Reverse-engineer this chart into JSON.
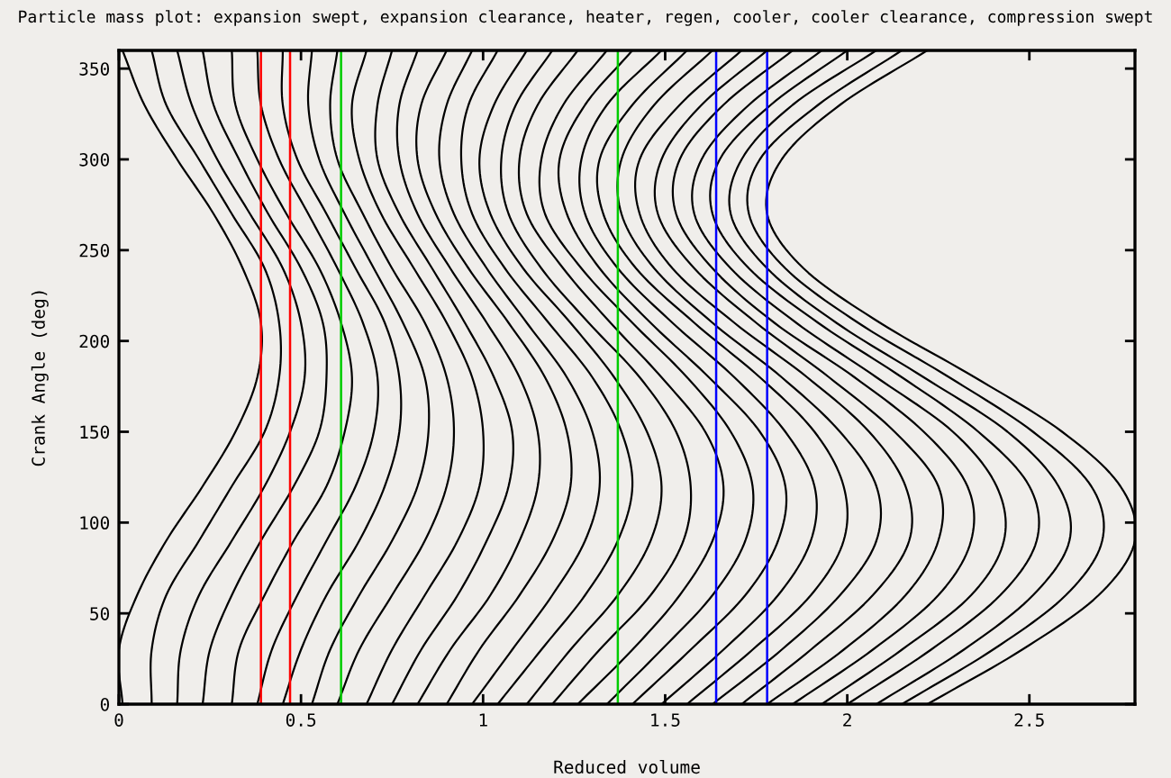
{
  "chart_data": {
    "type": "line",
    "title": "Particle mass plot: expansion swept, expansion clearance, heater, regen, cooler, cooler clearance, compression swept",
    "xlabel": "Reduced volume",
    "ylabel": "Crank Angle (deg)",
    "xlim": [
      0,
      2.79
    ],
    "ylim": [
      0,
      360
    ],
    "xticks": [
      0,
      0.5,
      1,
      1.5,
      2,
      2.5
    ],
    "yticks": [
      0,
      50,
      100,
      150,
      200,
      250,
      300,
      350
    ],
    "ref_lines": [
      {
        "axis": "x",
        "value": 0.39,
        "color": "#ff0000"
      },
      {
        "axis": "x",
        "value": 0.47,
        "color": "#ff0000"
      },
      {
        "axis": "x",
        "value": 0.61,
        "color": "#00cc00"
      },
      {
        "axis": "x",
        "value": 1.37,
        "color": "#00cc00"
      },
      {
        "axis": "x",
        "value": 1.64,
        "color": "#0000ff"
      },
      {
        "axis": "x",
        "value": 1.78,
        "color": "#0000ff"
      }
    ],
    "series": [
      {
        "color": "#000000",
        "x": [
          0.01,
          0,
          0.05,
          0.13,
          0.23,
          0.32,
          0.38,
          0.39,
          0.34,
          0.26,
          0.16,
          0.07,
          0.01
        ],
        "values": [
          0,
          30,
          60,
          90,
          120,
          150,
          180,
          210,
          240,
          270,
          300,
          330,
          360
        ]
      },
      {
        "color": "#000000",
        "x": [
          0.09,
          0.09,
          0.13,
          0.22,
          0.31,
          0.4,
          0.44,
          0.44,
          0.4,
          0.31,
          0.22,
          0.13,
          0.09
        ],
        "values": [
          0,
          30,
          60,
          90,
          120,
          150,
          180,
          210,
          240,
          270,
          300,
          330,
          360
        ]
      },
      {
        "color": "#000000",
        "x": [
          0.16,
          0.17,
          0.22,
          0.31,
          0.4,
          0.47,
          0.51,
          0.5,
          0.45,
          0.36,
          0.27,
          0.2,
          0.16
        ],
        "values": [
          0,
          30,
          60,
          90,
          120,
          150,
          180,
          210,
          240,
          270,
          300,
          330,
          360
        ]
      },
      {
        "color": "#000000",
        "x": [
          0.23,
          0.25,
          0.31,
          0.39,
          0.48,
          0.55,
          0.57,
          0.56,
          0.5,
          0.41,
          0.33,
          0.26,
          0.23
        ],
        "values": [
          0,
          30,
          60,
          90,
          120,
          150,
          180,
          210,
          240,
          270,
          300,
          330,
          360
        ]
      },
      {
        "color": "#000000",
        "x": [
          0.31,
          0.33,
          0.4,
          0.48,
          0.57,
          0.62,
          0.64,
          0.61,
          0.55,
          0.46,
          0.38,
          0.32,
          0.31
        ],
        "values": [
          0,
          30,
          60,
          90,
          120,
          150,
          180,
          210,
          240,
          270,
          300,
          330,
          360
        ]
      },
      {
        "color": "#000000",
        "x": [
          0.38,
          0.42,
          0.49,
          0.57,
          0.65,
          0.7,
          0.71,
          0.67,
          0.6,
          0.52,
          0.44,
          0.39,
          0.38
        ],
        "values": [
          0,
          30,
          60,
          90,
          120,
          150,
          180,
          210,
          240,
          270,
          300,
          330,
          360
        ]
      },
      {
        "color": "#000000",
        "x": [
          0.45,
          0.5,
          0.57,
          0.66,
          0.73,
          0.77,
          0.77,
          0.73,
          0.65,
          0.57,
          0.49,
          0.45,
          0.45
        ],
        "values": [
          0,
          30,
          60,
          90,
          120,
          150,
          180,
          210,
          240,
          270,
          300,
          330,
          360
        ]
      },
      {
        "color": "#000000",
        "x": [
          0.53,
          0.58,
          0.66,
          0.75,
          0.82,
          0.85,
          0.84,
          0.78,
          0.7,
          0.62,
          0.55,
          0.52,
          0.53
        ],
        "values": [
          0,
          30,
          60,
          90,
          120,
          150,
          180,
          210,
          240,
          270,
          300,
          330,
          360
        ]
      },
      {
        "color": "#000000",
        "x": [
          0.6,
          0.66,
          0.75,
          0.84,
          0.9,
          0.92,
          0.9,
          0.84,
          0.75,
          0.67,
          0.6,
          0.58,
          0.6
        ],
        "values": [
          0,
          30,
          60,
          90,
          120,
          150,
          180,
          210,
          240,
          270,
          300,
          330,
          360
        ]
      },
      {
        "color": "#000000",
        "x": [
          0.68,
          0.75,
          0.84,
          0.93,
          0.99,
          1.0,
          0.97,
          0.9,
          0.81,
          0.72,
          0.66,
          0.64,
          0.68
        ],
        "values": [
          0,
          30,
          60,
          90,
          120,
          150,
          180,
          210,
          240,
          270,
          300,
          330,
          360
        ]
      },
      {
        "color": "#000000",
        "x": [
          0.75,
          0.83,
          0.93,
          1.01,
          1.07,
          1.08,
          1.03,
          0.95,
          0.86,
          0.77,
          0.71,
          0.71,
          0.75
        ],
        "values": [
          0,
          30,
          60,
          90,
          120,
          150,
          180,
          210,
          240,
          270,
          300,
          330,
          360
        ]
      },
      {
        "color": "#000000",
        "x": [
          0.82,
          0.91,
          1.02,
          1.1,
          1.15,
          1.15,
          1.1,
          1.01,
          0.91,
          0.82,
          0.77,
          0.77,
          0.82
        ],
        "values": [
          0,
          30,
          60,
          90,
          120,
          150,
          180,
          210,
          240,
          270,
          300,
          330,
          360
        ]
      },
      {
        "color": "#000000",
        "x": [
          0.9,
          0.99,
          1.1,
          1.19,
          1.24,
          1.23,
          1.17,
          1.07,
          0.96,
          0.87,
          0.82,
          0.83,
          0.9
        ],
        "values": [
          0,
          30,
          60,
          90,
          120,
          150,
          180,
          210,
          240,
          270,
          300,
          330,
          360
        ]
      },
      {
        "color": "#000000",
        "x": [
          0.97,
          1.08,
          1.19,
          1.28,
          1.32,
          1.3,
          1.23,
          1.12,
          1.01,
          0.92,
          0.88,
          0.9,
          0.97
        ],
        "values": [
          0,
          30,
          60,
          90,
          120,
          150,
          180,
          210,
          240,
          270,
          300,
          330,
          360
        ]
      },
      {
        "color": "#000000",
        "x": [
          1.04,
          1.16,
          1.28,
          1.37,
          1.41,
          1.38,
          1.3,
          1.18,
          1.06,
          0.97,
          0.94,
          0.96,
          1.04
        ],
        "values": [
          0,
          30,
          60,
          90,
          120,
          150,
          180,
          210,
          240,
          270,
          300,
          330,
          360
        ]
      },
      {
        "color": "#000000",
        "x": [
          1.12,
          1.24,
          1.37,
          1.46,
          1.49,
          1.45,
          1.36,
          1.24,
          1.11,
          1.02,
          0.99,
          1.03,
          1.12
        ],
        "values": [
          0,
          30,
          60,
          90,
          120,
          150,
          180,
          210,
          240,
          270,
          300,
          330,
          360
        ]
      },
      {
        "color": "#000000",
        "x": [
          1.19,
          1.32,
          1.46,
          1.55,
          1.57,
          1.53,
          1.43,
          1.29,
          1.16,
          1.07,
          1.05,
          1.09,
          1.19
        ],
        "values": [
          0,
          30,
          60,
          90,
          120,
          150,
          180,
          210,
          240,
          270,
          300,
          330,
          360
        ]
      },
      {
        "color": "#000000",
        "x": [
          1.26,
          1.41,
          1.54,
          1.63,
          1.66,
          1.61,
          1.49,
          1.35,
          1.22,
          1.12,
          1.1,
          1.15,
          1.26
        ],
        "values": [
          0,
          30,
          60,
          90,
          120,
          150,
          180,
          210,
          240,
          270,
          300,
          330,
          360
        ]
      },
      {
        "color": "#000000",
        "x": [
          1.34,
          1.49,
          1.63,
          1.72,
          1.74,
          1.68,
          1.56,
          1.41,
          1.27,
          1.17,
          1.16,
          1.22,
          1.34
        ],
        "values": [
          0,
          30,
          60,
          90,
          120,
          150,
          180,
          210,
          240,
          270,
          300,
          330,
          360
        ]
      },
      {
        "color": "#000000",
        "x": [
          1.41,
          1.57,
          1.72,
          1.81,
          1.83,
          1.76,
          1.62,
          1.46,
          1.32,
          1.23,
          1.21,
          1.28,
          1.41
        ],
        "values": [
          0,
          30,
          60,
          90,
          120,
          150,
          180,
          210,
          240,
          270,
          300,
          330,
          360
        ]
      },
      {
        "color": "#000000",
        "x": [
          1.49,
          1.66,
          1.81,
          1.9,
          1.91,
          1.83,
          1.69,
          1.52,
          1.37,
          1.28,
          1.27,
          1.34,
          1.49
        ],
        "values": [
          0,
          30,
          60,
          90,
          120,
          150,
          180,
          210,
          240,
          270,
          300,
          330,
          360
        ]
      },
      {
        "color": "#000000",
        "x": [
          1.56,
          1.74,
          1.9,
          1.99,
          1.99,
          1.91,
          1.76,
          1.58,
          1.42,
          1.33,
          1.32,
          1.41,
          1.56
        ],
        "values": [
          0,
          30,
          60,
          90,
          120,
          150,
          180,
          210,
          240,
          270,
          300,
          330,
          360
        ]
      },
      {
        "color": "#000000",
        "x": [
          1.63,
          1.82,
          1.98,
          2.08,
          2.08,
          1.98,
          1.82,
          1.63,
          1.47,
          1.38,
          1.38,
          1.47,
          1.63
        ],
        "values": [
          0,
          30,
          60,
          90,
          120,
          150,
          180,
          210,
          240,
          270,
          300,
          330,
          360
        ]
      },
      {
        "color": "#000000",
        "x": [
          1.71,
          1.9,
          2.07,
          2.17,
          2.16,
          2.06,
          1.89,
          1.69,
          1.52,
          1.43,
          1.43,
          1.54,
          1.71
        ],
        "values": [
          0,
          30,
          60,
          90,
          120,
          150,
          180,
          210,
          240,
          270,
          300,
          330,
          360
        ]
      },
      {
        "color": "#000000",
        "x": [
          1.78,
          1.99,
          2.16,
          2.25,
          2.25,
          2.13,
          1.95,
          1.75,
          1.58,
          1.48,
          1.49,
          1.6,
          1.78
        ],
        "values": [
          0,
          30,
          60,
          90,
          120,
          150,
          180,
          210,
          240,
          270,
          300,
          330,
          360
        ]
      },
      {
        "color": "#000000",
        "x": [
          1.85,
          2.07,
          2.25,
          2.34,
          2.33,
          2.21,
          2.02,
          1.8,
          1.63,
          1.53,
          1.54,
          1.66,
          1.85
        ],
        "values": [
          0,
          30,
          60,
          90,
          120,
          150,
          180,
          210,
          240,
          270,
          300,
          330,
          360
        ]
      },
      {
        "color": "#000000",
        "x": [
          1.93,
          2.15,
          2.34,
          2.43,
          2.41,
          2.29,
          2.08,
          1.86,
          1.68,
          1.58,
          1.6,
          1.73,
          1.93
        ],
        "values": [
          0,
          30,
          60,
          90,
          120,
          150,
          180,
          210,
          240,
          270,
          300,
          330,
          360
        ]
      },
      {
        "color": "#000000",
        "x": [
          2.0,
          2.23,
          2.42,
          2.52,
          2.5,
          2.36,
          2.15,
          1.92,
          1.73,
          1.63,
          1.65,
          1.79,
          2.0
        ],
        "values": [
          0,
          30,
          60,
          90,
          120,
          150,
          180,
          210,
          240,
          270,
          300,
          330,
          360
        ]
      },
      {
        "color": "#000000",
        "x": [
          2.08,
          2.32,
          2.51,
          2.61,
          2.58,
          2.44,
          2.21,
          1.97,
          1.78,
          1.68,
          1.71,
          1.85,
          2.08
        ],
        "values": [
          0,
          30,
          60,
          90,
          120,
          150,
          180,
          210,
          240,
          270,
          300,
          330,
          360
        ]
      },
      {
        "color": "#000000",
        "x": [
          2.15,
          2.4,
          2.6,
          2.7,
          2.67,
          2.51,
          2.28,
          2.03,
          1.83,
          1.73,
          1.76,
          1.92,
          2.15
        ],
        "values": [
          0,
          30,
          60,
          90,
          120,
          150,
          180,
          210,
          240,
          270,
          300,
          330,
          360
        ]
      },
      {
        "color": "#000000",
        "x": [
          2.22,
          2.48,
          2.69,
          2.79,
          2.75,
          2.59,
          2.35,
          2.09,
          1.88,
          1.78,
          1.82,
          1.98,
          2.22
        ],
        "values": [
          0,
          30,
          60,
          90,
          120,
          150,
          180,
          210,
          240,
          270,
          300,
          330,
          360
        ]
      }
    ]
  }
}
